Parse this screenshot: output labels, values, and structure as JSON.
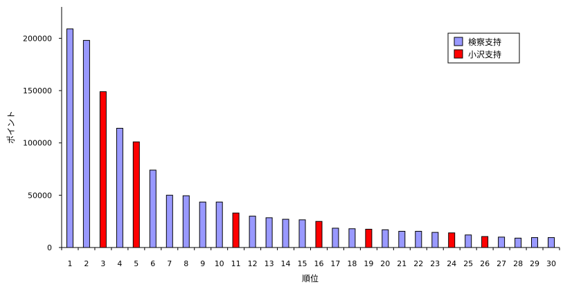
{
  "chart_data": {
    "type": "bar",
    "xlabel": "順位",
    "ylabel": "ポイント",
    "ylim": [
      0,
      230000
    ],
    "yticks": [
      0,
      50000,
      100000,
      150000,
      200000
    ],
    "grid": false,
    "legend_position": "top-right",
    "series": [
      {
        "name": "検察支持",
        "color": "#9999ff"
      },
      {
        "name": "小沢支持",
        "color": "#ff0000"
      }
    ],
    "categories": [
      "1",
      "2",
      "3",
      "4",
      "5",
      "6",
      "7",
      "8",
      "9",
      "10",
      "11",
      "12",
      "13",
      "14",
      "15",
      "16",
      "17",
      "18",
      "19",
      "20",
      "21",
      "22",
      "23",
      "24",
      "25",
      "26",
      "27",
      "28",
      "29",
      "30"
    ],
    "values": [
      209000,
      198000,
      149000,
      114000,
      101000,
      74000,
      50000,
      49500,
      43500,
      43500,
      33000,
      30000,
      28500,
      27000,
      26500,
      25000,
      18500,
      18000,
      17500,
      17000,
      15500,
      15500,
      14500,
      14000,
      12000,
      10500,
      10000,
      9000,
      9500,
      9500
    ],
    "bar_series": [
      0,
      0,
      1,
      0,
      1,
      0,
      0,
      0,
      0,
      0,
      1,
      0,
      0,
      0,
      0,
      1,
      0,
      0,
      1,
      0,
      0,
      0,
      0,
      1,
      0,
      1,
      0,
      0,
      0,
      0
    ]
  }
}
